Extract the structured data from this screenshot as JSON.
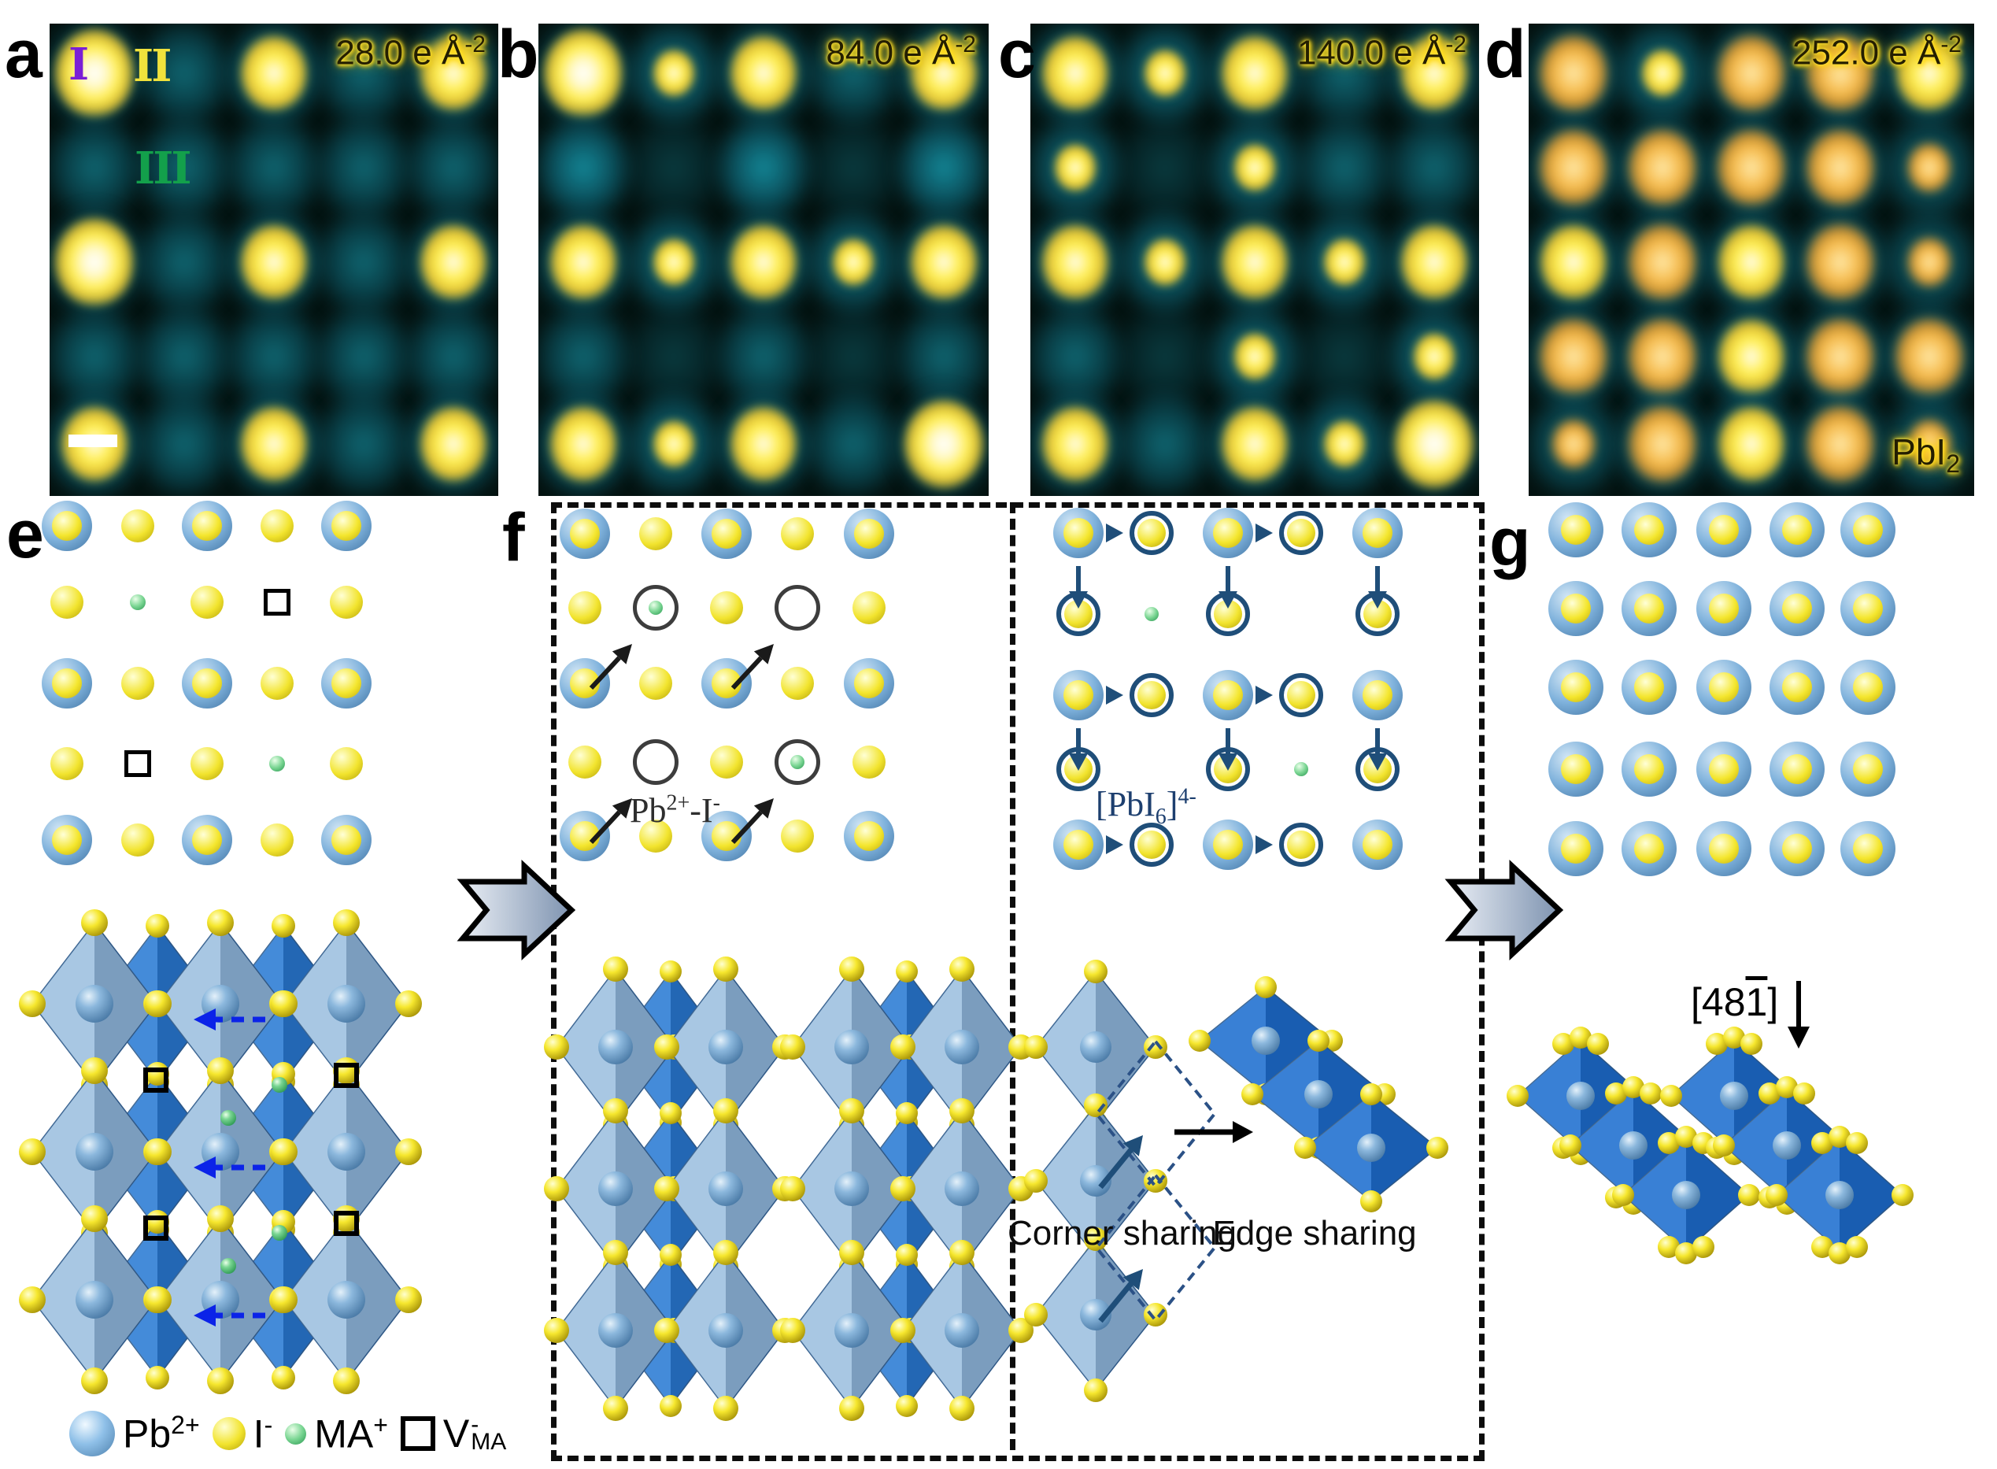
{
  "colors": {
    "stem_teal": "#0f7a8a",
    "stem_yellow": "#ffe84d",
    "stem_orange": "#f2ab3f",
    "stem_bg": "#041210",
    "pb_blue": "#7fb2dc",
    "iodine_yellow": "#f2e42e",
    "ma_green": "#6fd08a",
    "vacancy_black": "#000000",
    "ring_navy": "#1f4e79",
    "dashed_arrow_blue": "#0b23e8",
    "octahedron_light": "#9cc0e0",
    "octahedron_dark": "#2b7bd4"
  },
  "stem_panels": [
    {
      "letter": "a",
      "dose": "28.0 e Å",
      "dose_sup": "-2",
      "regions": [
        {
          "text": "I",
          "color": "#7a1fd6"
        },
        {
          "text": "II",
          "color": "#f0e23c"
        },
        {
          "text": "III",
          "color": "#13a04b"
        }
      ],
      "pattern": [
        "W t Y t Y",
        "t t t t t",
        "W t Y t Y",
        "t t t t t",
        "Y t Y t Y"
      ]
    },
    {
      "letter": "b",
      "dose": "84.0 e Å",
      "dose_sup": "-2",
      "pattern": [
        "W y Y t Y",
        "T d T d T",
        "Y y Y y Y",
        "t d t d t",
        "Y y Y t W"
      ]
    },
    {
      "letter": "c",
      "dose": "140.0 e Å",
      "dose_sup": "-2",
      "pattern": [
        "Y y Y t Y",
        "y d y t t",
        "Y y Y y Y",
        "t d y d y",
        "Y t Y y W"
      ]
    },
    {
      "letter": "d",
      "dose": "252.0 e Å",
      "dose_sup": "-2",
      "corner_main": "PbI",
      "corner_sub": "2",
      "pattern": [
        "O y O O Y",
        "O O O O o",
        "Y O Y O o",
        "O O Y O O",
        "o O Y O o"
      ]
    }
  ],
  "panel_e": {
    "letter": "e",
    "grid": [
      "P I P I P",
      "I M I V I",
      "P I P I P",
      "I V I M I",
      "P I P I P"
    ]
  },
  "panel_f": {
    "letter": "f",
    "left_grid": [
      "P I P I P",
      "I CM I C0 I",
      "P I P I P",
      "I C0 I CM I",
      "P I P I P"
    ],
    "left_arrow_targets": [
      [
        1,
        1
      ],
      [
        1,
        3
      ],
      [
        3,
        1
      ],
      [
        3,
        3
      ]
    ],
    "pb_i_label": {
      "p1": "Pb",
      "s1": "2+",
      "p2": "-I",
      "s2": "-"
    },
    "right_grid": [
      "P R P R P",
      "R G R . R",
      "P R P R P",
      "R . R G R",
      "P R P R P"
    ],
    "right_arrows": [
      [
        0,
        0
      ],
      [
        0,
        2
      ],
      [
        2,
        0
      ],
      [
        2,
        2
      ],
      [
        4,
        0
      ],
      [
        4,
        2
      ]
    ],
    "down_arrows": [
      [
        0,
        0
      ],
      [
        0,
        2
      ],
      [
        0,
        4
      ],
      [
        2,
        0
      ],
      [
        2,
        2
      ],
      [
        2,
        4
      ]
    ],
    "pbi6_label": {
      "p1": "[PbI",
      "sub": "6",
      "p2": "]",
      "sup": "4-"
    },
    "corner_sharing": "Corner sharing",
    "edge_sharing": "Edge sharing"
  },
  "panel_g": {
    "letter": "g",
    "grid": [
      "P P P P P",
      "P P P P P",
      "P P P P P",
      "P P P P P",
      "P P P P P"
    ],
    "direction": {
      "p1": "[48",
      "bar": "1",
      "p2": "]"
    }
  },
  "legend": {
    "items": [
      {
        "icon": "pb-sphere",
        "main": "Pb",
        "sup": "2+"
      },
      {
        "icon": "iodine-sphere",
        "main": "I",
        "sup": "-"
      },
      {
        "icon": "ma-sphere",
        "main": "MA",
        "sup": "+"
      },
      {
        "icon": "vacancy-square",
        "main": "V",
        "sub": "MA",
        "sup": "-"
      }
    ]
  }
}
